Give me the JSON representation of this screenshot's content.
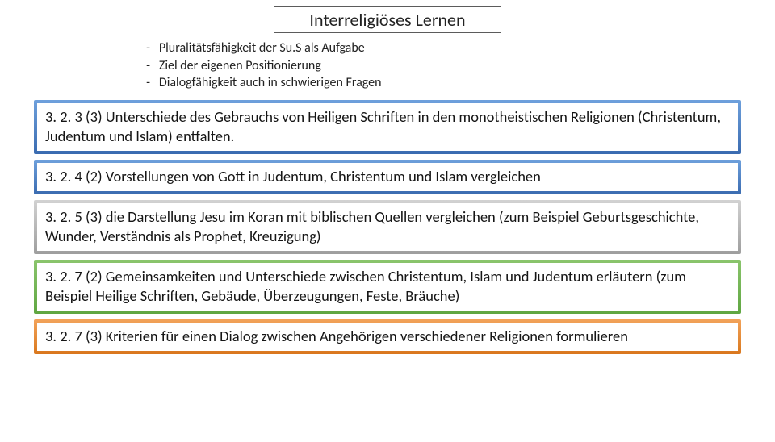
{
  "title": "Interreligiöses Lernen",
  "bullets": [
    "Pluralitätsfähigkeit der Su.S als Aufgabe",
    "Ziel der eigenen Positionierung",
    "Dialogfähigkeit auch in schwierigen Fragen"
  ],
  "items": [
    {
      "color": "blue",
      "text": "3. 2. 3 (3) Unterschiede des Gebrauchs von Heiligen Schriften in den monotheistischen Religionen (Christentum, Judentum und Islam) entfalten."
    },
    {
      "color": "blue",
      "text": "3. 2. 4 (2) Vorstellungen von Gott in Judentum, Christentum und Islam vergleichen"
    },
    {
      "color": "gray",
      "text": "3. 2. 5 (3) die Darstellung Jesu im Koran mit biblischen Quellen vergleichen (zum Beispiel Geburtsgeschichte, Wunder, Verständnis als Prophet, Kreuzigung)"
    },
    {
      "color": "green",
      "text": "3. 2. 7 (2) Gemeinsamkeiten und Unterschiede zwischen Christentum, Islam und Judentum erläutern (zum Beispiel Heilige Schriften, Gebäude, Überzeugungen, Feste, Bräuche)"
    },
    {
      "color": "orange",
      "text": " 3. 2. 7 (3) Kriterien für einen Dialog zwischen Angehörigen verschiedener Religionen formulieren"
    }
  ],
  "colors": {
    "blue": [
      "#6ea0dc",
      "#3a6bb0"
    ],
    "gray": [
      "#d2d2d2",
      "#9e9e9e"
    ],
    "green": [
      "#8bc56d",
      "#5fa641"
    ],
    "orange": [
      "#f2a35a",
      "#d9771d"
    ]
  }
}
